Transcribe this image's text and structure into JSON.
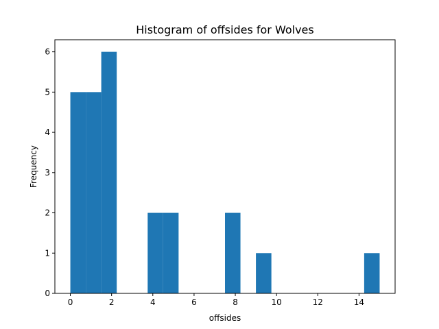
{
  "chart_data": {
    "type": "bar",
    "title": "Histogram of offsides for Wolves",
    "xlabel": "offsides",
    "ylabel": "Frequency",
    "xlim": [
      -0.75,
      15.75
    ],
    "ylim": [
      0,
      6.3
    ],
    "xticks": [
      0,
      2,
      4,
      6,
      8,
      10,
      12,
      14
    ],
    "yticks": [
      0,
      1,
      2,
      3,
      4,
      5,
      6
    ],
    "grid": false,
    "bins": [
      {
        "start": 0.0,
        "end": 0.75,
        "count": 5
      },
      {
        "start": 0.75,
        "end": 1.5,
        "count": 5
      },
      {
        "start": 1.5,
        "end": 2.25,
        "count": 6
      },
      {
        "start": 3.75,
        "end": 4.5,
        "count": 2
      },
      {
        "start": 4.5,
        "end": 5.25,
        "count": 2
      },
      {
        "start": 7.5,
        "end": 8.25,
        "count": 2
      },
      {
        "start": 9.0,
        "end": 9.75,
        "count": 1
      },
      {
        "start": 14.25,
        "end": 15.0,
        "count": 1
      }
    ],
    "colors": {
      "bar": "#1f77b4",
      "axis": "#000000"
    }
  }
}
